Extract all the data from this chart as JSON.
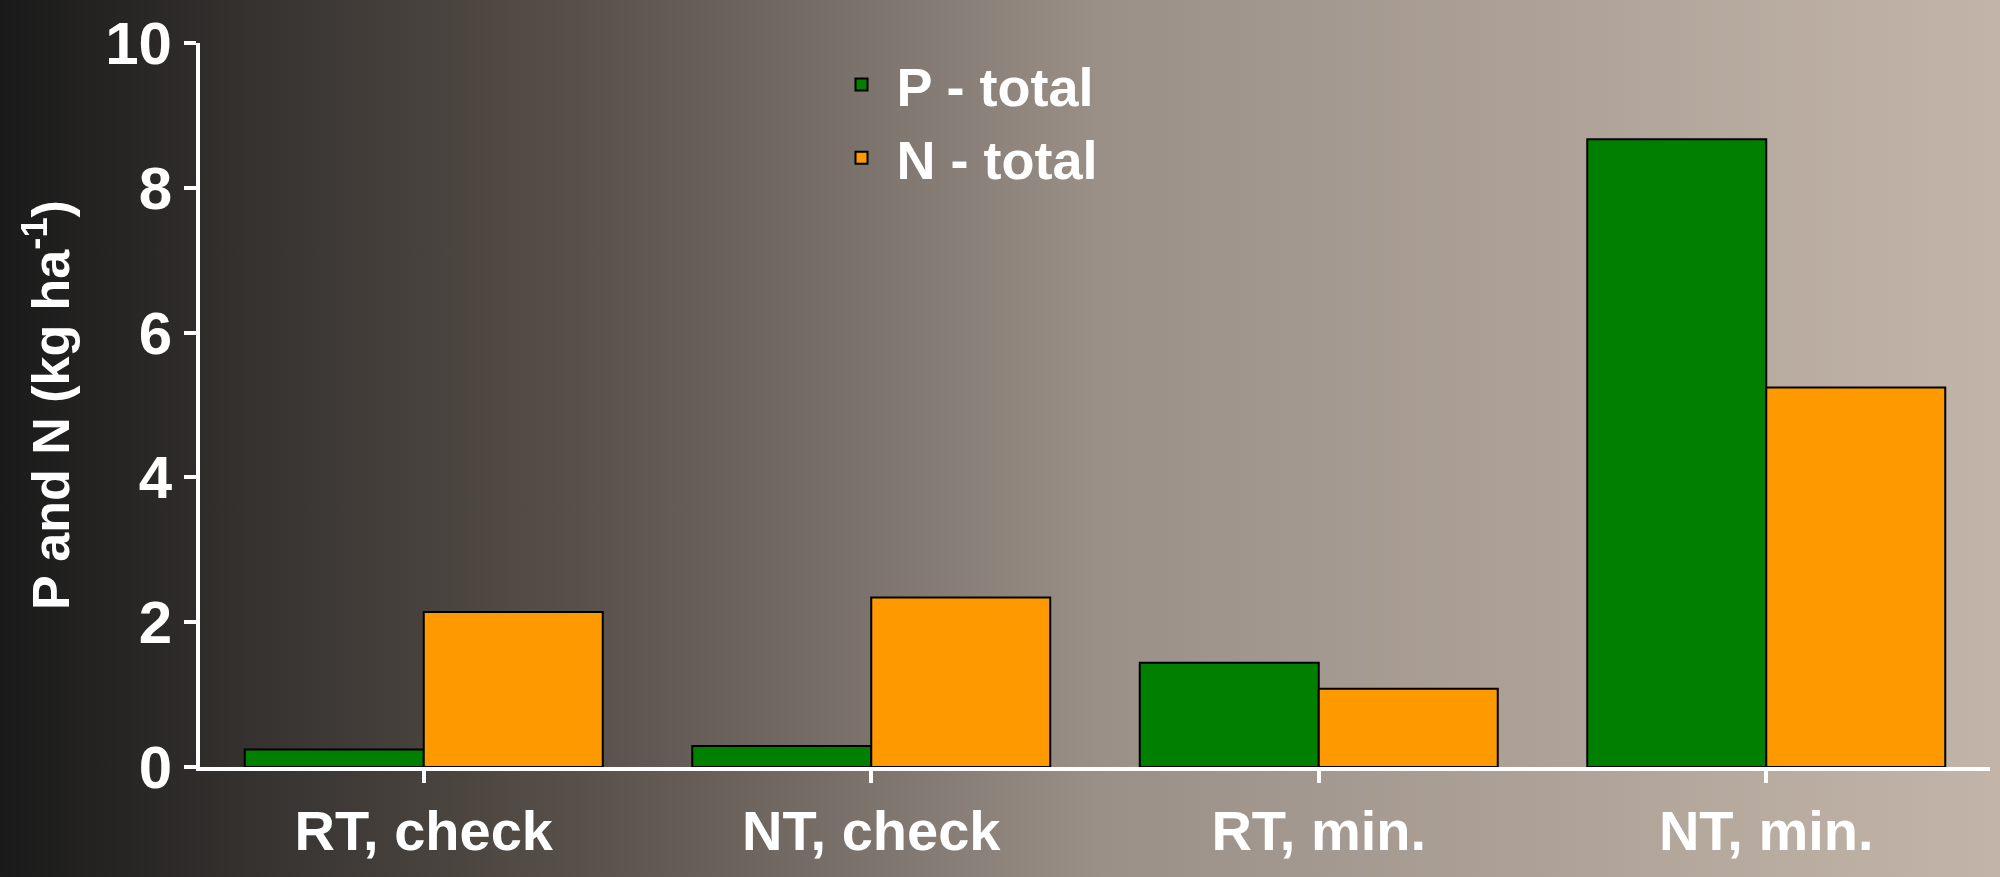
{
  "chart_data": {
    "type": "bar",
    "ylabel": "P and N (kg ha$^{-1}$)",
    "categories": [
      "RT, check",
      "NT, check",
      "RT, min.",
      "NT, min."
    ],
    "series": [
      {
        "name": "P - total",
        "color": "#007f00",
        "values": [
          0.24,
          0.29,
          1.44,
          8.67
        ]
      },
      {
        "name": "N - total",
        "color": "#ff9900",
        "values": [
          2.14,
          2.34,
          1.08,
          5.24
        ]
      }
    ],
    "ylim": [
      0,
      10
    ],
    "yticks": [
      0,
      2,
      4,
      6,
      8,
      10
    ],
    "grid": false,
    "legend": "top"
  }
}
